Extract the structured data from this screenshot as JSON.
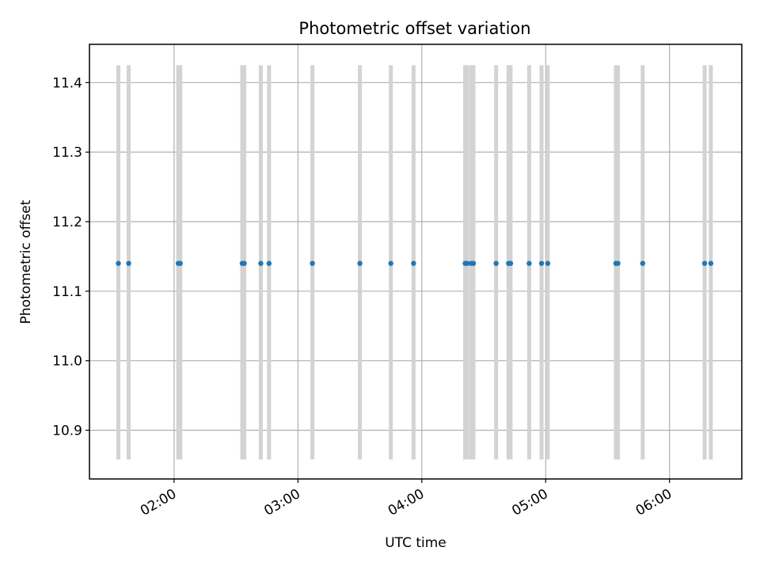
{
  "chart_data": {
    "type": "scatter",
    "title": "Photometric offset variation",
    "xlabel": "UTC time",
    "ylabel": "Photometric offset",
    "xlim": [
      "01:19",
      "06:35"
    ],
    "ylim": [
      10.83,
      11.455
    ],
    "x_ticks": [
      "02:00",
      "03:00",
      "04:00",
      "05:00",
      "06:00"
    ],
    "y_ticks": [
      10.9,
      11.0,
      11.1,
      11.2,
      11.3,
      11.4
    ],
    "grid": true,
    "colors": {
      "points": "#1f77b4",
      "error_bars": "#d3d3d3",
      "grid": "#b0b0b0"
    },
    "error_bar_range": [
      10.858,
      11.425
    ],
    "points": [
      {
        "x": "01:33",
        "y": 11.14
      },
      {
        "x": "01:38",
        "y": 11.14
      },
      {
        "x": "02:02",
        "y": 11.14
      },
      {
        "x": "02:03",
        "y": 11.14
      },
      {
        "x": "02:33",
        "y": 11.14
      },
      {
        "x": "02:34",
        "y": 11.14
      },
      {
        "x": "02:42",
        "y": 11.14
      },
      {
        "x": "02:46",
        "y": 11.14
      },
      {
        "x": "03:07",
        "y": 11.14
      },
      {
        "x": "03:30",
        "y": 11.14
      },
      {
        "x": "03:45",
        "y": 11.14
      },
      {
        "x": "03:56",
        "y": 11.14
      },
      {
        "x": "04:21",
        "y": 11.14
      },
      {
        "x": "04:22",
        "y": 11.14
      },
      {
        "x": "04:24",
        "y": 11.14
      },
      {
        "x": "04:25",
        "y": 11.14
      },
      {
        "x": "04:36",
        "y": 11.14
      },
      {
        "x": "04:42",
        "y": 11.14
      },
      {
        "x": "04:43",
        "y": 11.14
      },
      {
        "x": "04:52",
        "y": 11.14
      },
      {
        "x": "04:58",
        "y": 11.14
      },
      {
        "x": "05:01",
        "y": 11.14
      },
      {
        "x": "05:34",
        "y": 11.14
      },
      {
        "x": "05:35",
        "y": 11.14
      },
      {
        "x": "05:47",
        "y": 11.14
      },
      {
        "x": "06:17",
        "y": 11.14
      },
      {
        "x": "06:20",
        "y": 11.14
      }
    ]
  }
}
